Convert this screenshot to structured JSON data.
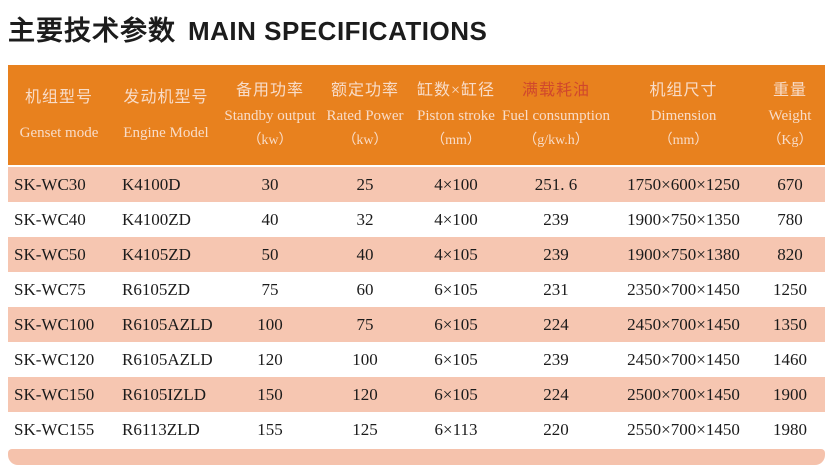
{
  "title": {
    "zh": "主要技术参数",
    "en": "MAIN SPECIFICATIONS"
  },
  "colors": {
    "header_bg": "#E8811E",
    "header_text": "#F8DCC8",
    "fuel_label_red": "#D0482C",
    "row_pink": "#F6C6B1",
    "row_white": "#FFFFFF",
    "footer_bar": "#F5C2AC",
    "body_text": "#1B1B1B"
  },
  "table": {
    "columns": [
      {
        "zh": "机组型号",
        "en": "Genset mode",
        "unit": ""
      },
      {
        "zh": "发动机型号",
        "en": "Engine Model",
        "unit": ""
      },
      {
        "zh": "备用功率",
        "en": "Standby output",
        "unit": "（kw）"
      },
      {
        "zh": "额定功率",
        "en": "Rated Power",
        "unit": "（kw）"
      },
      {
        "zh": "缸数×缸径",
        "en": "Piston stroke",
        "unit": "（mm）"
      },
      {
        "zh": "满载耗油",
        "en": "Fuel consumption",
        "unit": "（g/kw.h）"
      },
      {
        "zh": "机组尺寸",
        "en": "Dimension",
        "unit": "（mm）"
      },
      {
        "zh": "重量",
        "en": "Weight",
        "unit": "（Kg）"
      }
    ],
    "rows": [
      [
        "SK-WC30",
        "K4100D",
        "30",
        "25",
        "4×100",
        "251. 6",
        "1750×600×1250",
        "670"
      ],
      [
        "SK-WC40",
        "K4100ZD",
        "40",
        "32",
        "4×100",
        "239",
        "1900×750×1350",
        "780"
      ],
      [
        "SK-WC50",
        "K4105ZD",
        "50",
        "40",
        "4×105",
        "239",
        "1900×750×1380",
        "820"
      ],
      [
        "SK-WC75",
        "R6105ZD",
        "75",
        "60",
        "6×105",
        "231",
        "2350×700×1450",
        "1250"
      ],
      [
        "SK-WC100",
        "R6105AZLD",
        "100",
        "75",
        "6×105",
        "224",
        "2450×700×1450",
        "1350"
      ],
      [
        "SK-WC120",
        "R6105AZLD",
        "120",
        "100",
        "6×105",
        "239",
        "2450×700×1450",
        "1460"
      ],
      [
        "SK-WC150",
        "R6105IZLD",
        "150",
        "120",
        "6×105",
        "224",
        "2500×700×1450",
        "1900"
      ],
      [
        "SK-WC155",
        "R6113ZLD",
        "155",
        "125",
        "6×113",
        "220",
        "2550×700×1450",
        "1980"
      ]
    ]
  }
}
